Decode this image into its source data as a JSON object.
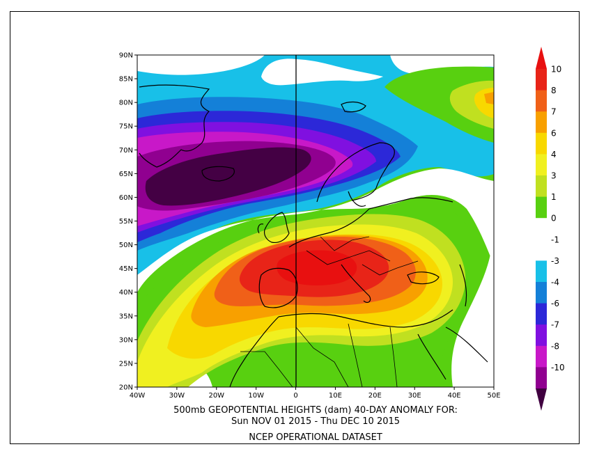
{
  "map": {
    "lat_labels": [
      "90N",
      "85N",
      "80N",
      "75N",
      "70N",
      "65N",
      "60N",
      "55N",
      "50N",
      "45N",
      "40N",
      "35N",
      "30N",
      "25N",
      "20N"
    ],
    "lon_labels": [
      "40W",
      "30W",
      "20W",
      "10W",
      "0",
      "10E",
      "20E",
      "30E",
      "40E",
      "50E"
    ],
    "extent": {
      "lon_min": -40,
      "lon_max": 50,
      "lat_min": 20,
      "lat_max": 90
    }
  },
  "colorbar": {
    "levels": [
      {
        "label": "10",
        "color": "#e82418"
      },
      {
        "label": "8",
        "color": "#f06018"
      },
      {
        "label": "7",
        "color": "#f8a000"
      },
      {
        "label": "6",
        "color": "#f8d800"
      },
      {
        "label": "4",
        "color": "#f0f020"
      },
      {
        "label": "3",
        "color": "#c0e020"
      },
      {
        "label": "1",
        "color": "#58d010"
      },
      {
        "label": "0",
        "color": "#ffffff"
      },
      {
        "label": "-1",
        "color": "#ffffff"
      },
      {
        "label": "-3",
        "color": "#18c0e8"
      },
      {
        "label": "-4",
        "color": "#1480d8"
      },
      {
        "label": "-6",
        "color": "#2c28d8"
      },
      {
        "label": "-7",
        "color": "#8010e0"
      },
      {
        "label": "-8",
        "color": "#c818c8"
      },
      {
        "label": "-10",
        "color": "#900090"
      }
    ],
    "top_color": "#e81010",
    "bottom_color": "#400040"
  },
  "caption": {
    "line1": "500mb GEOPOTENTIAL HEIGHTS (dam)    40-DAY ANOMALY FOR:",
    "line2": "Sun NOV 01 2015 - Thu DEC 10 2015",
    "line3": "NCEP OPERATIONAL DATASET"
  }
}
